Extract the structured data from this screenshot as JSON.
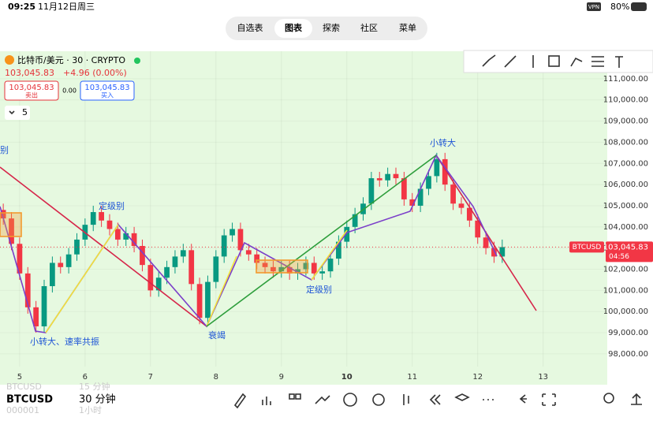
{
  "status_bar": {
    "time": "09:25",
    "date": "11月12日周三",
    "vpn": "VPN",
    "battery": "80%"
  },
  "tabs": [
    "自选表",
    "图表",
    "探索",
    "社区",
    "菜单"
  ],
  "header": {
    "symbol": "比特币/美元 · 30 · CRYPTO",
    "price": "103,045.83",
    "change": "+4.96 (0.00%)",
    "sell_price": "103,045.83",
    "sell_label": "卖出",
    "spread": "0.00",
    "buy_price": "103,045.83",
    "buy_label": "买入",
    "count": "5"
  },
  "annotations": [
    "别",
    "定级别",
    "小转大、速率共振",
    "衰竭",
    "定级别",
    "小转大"
  ],
  "chart_data": {
    "type": "candlestick",
    "up_color": "#089981",
    "down_color": "#f23645",
    "grid": true,
    "x": [
      4.75,
      4.875,
      5,
      5.125,
      5.25,
      5.375,
      5.5,
      5.625,
      5.75,
      5.875,
      6,
      6.125,
      6.25,
      6.375,
      6.5,
      6.625,
      6.75,
      6.875,
      7,
      7.125,
      7.25,
      7.375,
      7.5,
      7.625,
      7.75,
      7.875,
      8,
      8.125,
      8.25,
      8.375,
      8.5,
      8.625,
      8.75,
      8.875,
      9,
      9.125,
      9.25,
      9.375,
      9.5,
      9.625,
      9.75,
      9.875,
      10,
      10.125,
      10.25,
      10.375,
      10.5,
      10.625,
      10.75,
      10.875,
      11,
      11.125,
      11.25,
      11.375,
      11.5,
      11.625,
      11.75,
      11.875,
      12,
      12.125,
      12.25,
      12.375
    ],
    "open": [
      104800,
      104400,
      103200,
      101800,
      100200,
      99300,
      101200,
      102300,
      102100,
      102700,
      103400,
      104100,
      104700,
      104300,
      103900,
      103400,
      103700,
      103100,
      102200,
      101000,
      101600,
      102100,
      102600,
      102900,
      101300,
      99700,
      101400,
      102600,
      103600,
      103900,
      102900,
      102700,
      102300,
      102100,
      101900,
      102100,
      101800,
      102000,
      102300,
      101800,
      101900,
      102500,
      103300,
      104000,
      104600,
      105100,
      106300,
      106200,
      106500,
      106300,
      105300,
      105000,
      105800,
      106400,
      107200,
      106000,
      105100,
      104900,
      104300,
      103500,
      103000,
      102600
    ],
    "high": [
      105100,
      104700,
      103500,
      102100,
      100500,
      101500,
      102600,
      102600,
      103000,
      103700,
      104400,
      105000,
      105000,
      104600,
      104200,
      104000,
      104000,
      103400,
      102500,
      101900,
      102400,
      102900,
      103200,
      103200,
      101600,
      101700,
      102900,
      103900,
      104200,
      104200,
      103200,
      103000,
      102600,
      102400,
      102400,
      102400,
      102300,
      102600,
      102600,
      102200,
      102800,
      103600,
      104300,
      104900,
      105400,
      106600,
      106600,
      106800,
      106800,
      106600,
      105600,
      106100,
      106700,
      107500,
      107500,
      106300,
      105400,
      105200,
      104600,
      103800,
      103300,
      103400
    ],
    "low": [
      104100,
      102900,
      101500,
      99900,
      99000,
      99000,
      100900,
      101800,
      101800,
      102400,
      103100,
      103800,
      104000,
      103600,
      103100,
      103100,
      102800,
      101900,
      100700,
      100700,
      101300,
      101800,
      102300,
      101000,
      99400,
      99400,
      101100,
      102300,
      103300,
      102600,
      102400,
      102000,
      101800,
      101600,
      101600,
      101500,
      101500,
      101700,
      101500,
      101500,
      101600,
      102200,
      103000,
      103700,
      104300,
      104800,
      105900,
      105900,
      106000,
      105000,
      104700,
      104700,
      105500,
      106100,
      105700,
      104800,
      104600,
      104000,
      103200,
      102700,
      102300,
      102300
    ],
    "close": [
      104400,
      103200,
      101800,
      100200,
      99300,
      101200,
      102300,
      102100,
      102700,
      103400,
      104100,
      104700,
      104300,
      103900,
      103400,
      103700,
      103100,
      102200,
      101000,
      101600,
      102100,
      102600,
      102900,
      101300,
      99700,
      101400,
      102600,
      103600,
      103900,
      102900,
      102700,
      102300,
      102100,
      101900,
      102100,
      101800,
      102000,
      102300,
      101800,
      101900,
      102500,
      103300,
      104000,
      104600,
      105100,
      106300,
      106200,
      106500,
      106300,
      105300,
      105000,
      105800,
      106400,
      107200,
      106000,
      105100,
      104900,
      104300,
      103500,
      103000,
      102600,
      103045.83
    ],
    "xlim": [
      4.7,
      13.98
    ],
    "xticks": [
      5,
      6,
      7,
      8,
      9,
      10,
      11,
      12,
      13
    ],
    "ylim": [
      97400,
      112300
    ],
    "yticks": [
      {
        "value": 98000,
        "label": "98,000.00"
      },
      {
        "value": 99000,
        "label": "99,000.00"
      },
      {
        "value": 100000,
        "label": "100,000.00"
      },
      {
        "value": 101000,
        "label": "101,000.00"
      },
      {
        "value": 102000,
        "label": "102,000.00"
      },
      {
        "value": 103000,
        "label": "103,000.00"
      },
      {
        "value": 104000,
        "label": "104,000.00"
      },
      {
        "value": 105000,
        "label": "105,000.00"
      },
      {
        "value": 106000,
        "label": "106,000.00"
      },
      {
        "value": 107000,
        "label": "107,000.00"
      },
      {
        "value": 108000,
        "label": "108,000.00"
      },
      {
        "value": 109000,
        "label": "109,000.00"
      },
      {
        "value": 110000,
        "label": "110,000.00"
      },
      {
        "value": 111000,
        "label": "111,000.00"
      }
    ],
    "price_tag": {
      "symbol": "BTCUSD",
      "price": "103,045.83",
      "countdown": "04:56"
    }
  },
  "bottom_bar": {
    "symbol": "BTCUSD",
    "interval": "30 分钟",
    "ghost": [
      "BTCUSD",
      "15 分钟",
      "000001",
      "1小时"
    ]
  }
}
